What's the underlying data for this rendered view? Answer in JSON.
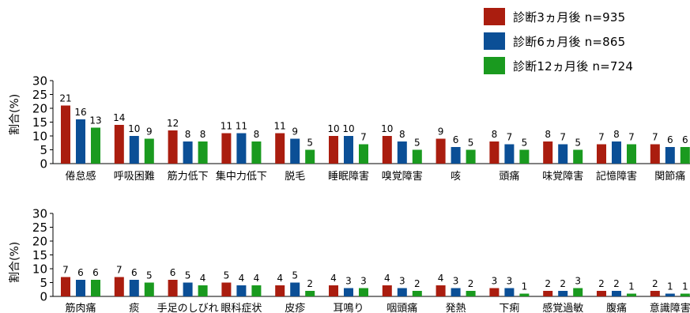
{
  "colors": {
    "s3": "#aa1d0f",
    "s6": "#0b4f96",
    "s12": "#1a9a1f"
  },
  "legend": [
    {
      "label": "診断3ヵ月後 n=935"
    },
    {
      "label": "診断6ヵ月後 n=865"
    },
    {
      "label": "診断12ヵ月後 n=724"
    }
  ],
  "chart_data": [
    {
      "type": "bar",
      "ylabel": "割合(%)",
      "ylim": [
        0,
        30
      ],
      "yticks": [
        0,
        5,
        10,
        15,
        20,
        25,
        30
      ],
      "categories": [
        "倦怠感",
        "呼吸困難",
        "筋力低下",
        "集中力低下",
        "脱毛",
        "睡眠障害",
        "嗅覚障害",
        "咳",
        "頭痛",
        "味覚障害",
        "記憶障害",
        "関節痛"
      ],
      "series": [
        {
          "name": "診断3ヵ月後 n=935",
          "values": [
            21,
            14,
            12,
            11,
            11,
            10,
            10,
            9,
            8,
            8,
            7,
            7
          ]
        },
        {
          "name": "診断6ヵ月後 n=865",
          "values": [
            16,
            10,
            8,
            11,
            9,
            10,
            8,
            6,
            7,
            7,
            8,
            6
          ]
        },
        {
          "name": "診断12ヵ月後 n=724",
          "values": [
            13,
            9,
            8,
            8,
            5,
            7,
            5,
            5,
            5,
            5,
            7,
            6
          ]
        }
      ]
    },
    {
      "type": "bar",
      "ylabel": "割合(%)",
      "ylim": [
        0,
        30
      ],
      "yticks": [
        0,
        5,
        10,
        15,
        20,
        25,
        30
      ],
      "categories": [
        "筋肉痛",
        "痰",
        "手足のしびれ",
        "眼科症状",
        "皮疹",
        "耳鳴り",
        "咽頭痛",
        "発熱",
        "下痢",
        "感覚過敏",
        "腹痛",
        "意識障害"
      ],
      "series": [
        {
          "name": "診断3ヵ月後 n=935",
          "values": [
            7,
            7,
            6,
            5,
            4,
            4,
            4,
            4,
            3,
            2,
            2,
            2
          ]
        },
        {
          "name": "診断6ヵ月後 n=865",
          "values": [
            6,
            6,
            5,
            4,
            5,
            3,
            3,
            3,
            3,
            2,
            2,
            1
          ]
        },
        {
          "name": "診断12ヵ月後 n=724",
          "values": [
            6,
            5,
            4,
            4,
            2,
            3,
            2,
            2,
            1,
            3,
            1,
            1
          ]
        }
      ]
    }
  ]
}
